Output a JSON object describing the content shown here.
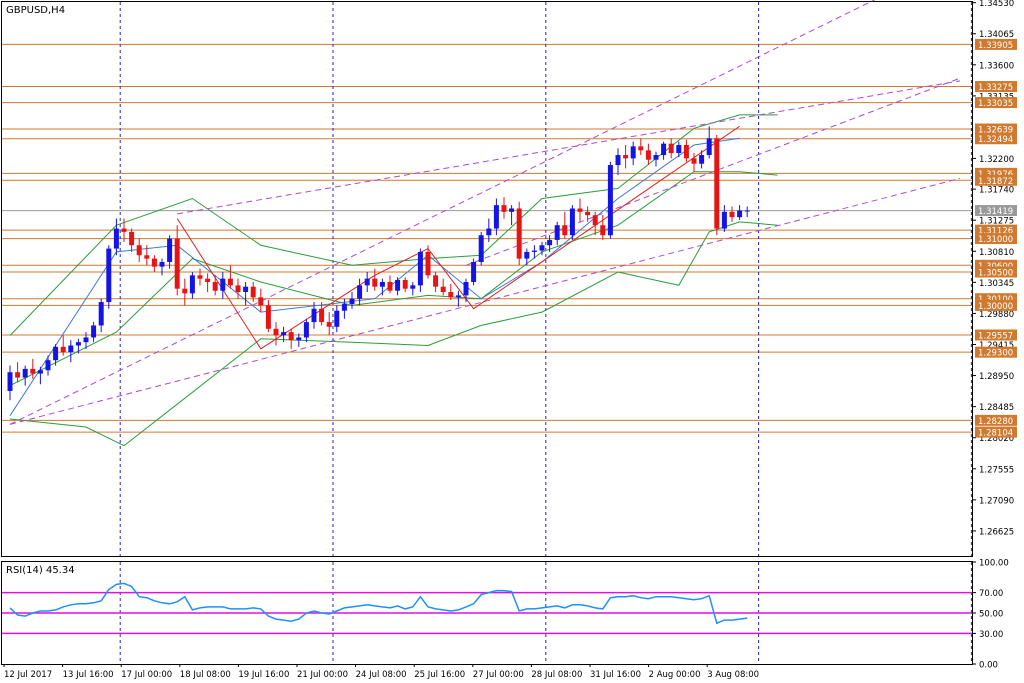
{
  "window": {
    "symbol_label": "GBPUSD,H4",
    "rsi_label": "RSI(14) 45.34"
  },
  "colors": {
    "bull": "#1414e6",
    "bear": "#e61414",
    "hline": "#d07a30",
    "vgrid": "#2222cc",
    "bands": "#2a9e3a",
    "ma": "#3a78d8",
    "channel": "#b04ad0",
    "zigzag": "#e02020",
    "rsi": "#1e90ff",
    "rsi_levels": "#e010e0",
    "price_box": "#d07a30",
    "axis_text": "#000000"
  },
  "chart_data": [
    {
      "type": "candlestick",
      "title": "GBPUSD,H4",
      "ylim": [
        1.2625,
        1.3454
      ],
      "price_axis_ticks": [
        "1.34530",
        "1.34065",
        "1.33600",
        "1.33135",
        "1.32200",
        "1.31740",
        "1.31275",
        "1.30810",
        "1.30345",
        "1.29880",
        "1.29415",
        "1.28950",
        "1.28485",
        "1.28020",
        "1.27555",
        "1.27090",
        "1.26625"
      ],
      "price_boxes": [
        {
          "label": "1.33905",
          "value": 1.33905,
          "kind": "level"
        },
        {
          "label": "1.33275",
          "value": 1.33275,
          "kind": "level"
        },
        {
          "label": "1.33035",
          "value": 1.33035,
          "kind": "level"
        },
        {
          "label": "1.32639",
          "value": 1.32639,
          "kind": "level"
        },
        {
          "label": "1.32494",
          "value": 1.32494,
          "kind": "level"
        },
        {
          "label": "1.31976",
          "value": 1.31976,
          "kind": "level"
        },
        {
          "label": "1.31872",
          "value": 1.31872,
          "kind": "level"
        },
        {
          "label": "1.31419",
          "value": 1.31419,
          "kind": "current"
        },
        {
          "label": "1.31126",
          "value": 1.31126,
          "kind": "level"
        },
        {
          "label": "1.31000",
          "value": 1.31,
          "kind": "level"
        },
        {
          "label": "1.30600",
          "value": 1.306,
          "kind": "level"
        },
        {
          "label": "1.30500",
          "value": 1.305,
          "kind": "level"
        },
        {
          "label": "1.30100",
          "value": 1.301,
          "kind": "level"
        },
        {
          "label": "1.30000",
          "value": 1.3,
          "kind": "level"
        },
        {
          "label": "1.29557",
          "value": 1.29557,
          "kind": "level"
        },
        {
          "label": "1.29300",
          "value": 1.293,
          "kind": "level"
        },
        {
          "label": "1.28280",
          "value": 1.2828,
          "kind": "level"
        },
        {
          "label": "1.28104",
          "value": 1.28104,
          "kind": "level"
        }
      ],
      "time_axis_labels": [
        "12 Jul 2017",
        "13 Jul 16:00",
        "17 Jul 00:00",
        "18 Jul 08:00",
        "19 Jul 16:00",
        "21 Jul 00:00",
        "24 Jul 08:00",
        "25 Jul 16:00",
        "27 Jul 00:00",
        "28 Jul 08:00",
        "31 Jul 16:00",
        "2 Aug 00:00",
        "3 Aug 08:00"
      ],
      "session_vlines_after_bar": [
        14,
        42,
        70,
        98,
        126
      ],
      "ohlc": [
        [
          1.2872,
          1.291,
          1.2858,
          1.29
        ],
        [
          1.29,
          1.2915,
          1.2885,
          1.2892
        ],
        [
          1.2892,
          1.291,
          1.288,
          1.2905
        ],
        [
          1.2905,
          1.292,
          1.289,
          1.2898
        ],
        [
          1.2898,
          1.2908,
          1.2882,
          1.2903
        ],
        [
          1.2903,
          1.2925,
          1.2895,
          1.2918
        ],
        [
          1.2918,
          1.2942,
          1.291,
          1.2938
        ],
        [
          1.2938,
          1.2955,
          1.2925,
          1.293
        ],
        [
          1.293,
          1.2948,
          1.2915,
          1.294
        ],
        [
          1.294,
          1.295,
          1.2928,
          1.2945
        ],
        [
          1.2945,
          1.296,
          1.2935,
          1.2952
        ],
        [
          1.2952,
          1.2975,
          1.2945,
          1.297
        ],
        [
          1.297,
          1.301,
          1.296,
          1.3005
        ],
        [
          1.3005,
          1.309,
          1.2995,
          1.3085
        ],
        [
          1.3085,
          1.313,
          1.3075,
          1.3115
        ],
        [
          1.3115,
          1.313,
          1.3095,
          1.311
        ],
        [
          1.311,
          1.3115,
          1.308,
          1.309
        ],
        [
          1.309,
          1.31,
          1.3065,
          1.3075
        ],
        [
          1.3075,
          1.309,
          1.306,
          1.307
        ],
        [
          1.307,
          1.3075,
          1.305,
          1.3058
        ],
        [
          1.3058,
          1.307,
          1.3045,
          1.3065
        ],
        [
          1.3065,
          1.3105,
          1.3055,
          1.31
        ],
        [
          1.31,
          1.312,
          1.3015,
          1.3025
        ],
        [
          1.3025,
          1.304,
          1.3,
          1.3018
        ],
        [
          1.3018,
          1.305,
          1.301,
          1.3045
        ],
        [
          1.3045,
          1.3055,
          1.303,
          1.304
        ],
        [
          1.304,
          1.3048,
          1.302,
          1.3035
        ],
        [
          1.3035,
          1.3045,
          1.3015,
          1.3022
        ],
        [
          1.3022,
          1.305,
          1.301,
          1.304
        ],
        [
          1.304,
          1.306,
          1.3025,
          1.303
        ],
        [
          1.303,
          1.304,
          1.301,
          1.302
        ],
        [
          1.302,
          1.3035,
          1.3,
          1.3028
        ],
        [
          1.3028,
          1.3035,
          1.3005,
          1.3012
        ],
        [
          1.3012,
          1.3025,
          1.299,
          1.3
        ],
        [
          1.3,
          1.3008,
          1.296,
          1.2965
        ],
        [
          1.2965,
          1.2975,
          1.294,
          1.2955
        ],
        [
          1.2955,
          1.2968,
          1.2945,
          1.296
        ],
        [
          1.296,
          1.2965,
          1.2935,
          1.2948
        ],
        [
          1.2948,
          1.2958,
          1.2938,
          1.2952
        ],
        [
          1.2952,
          1.298,
          1.2945,
          1.2975
        ],
        [
          1.2975,
          1.3005,
          1.2965,
          1.2995
        ],
        [
          1.2995,
          1.3005,
          1.297,
          1.2975
        ],
        [
          1.2975,
          1.299,
          1.2955,
          1.2968
        ],
        [
          1.2968,
          1.3,
          1.296,
          1.2992
        ],
        [
          1.2992,
          1.301,
          1.298,
          1.3002
        ],
        [
          1.3002,
          1.302,
          1.2995,
          1.301
        ],
        [
          1.301,
          1.304,
          1.3,
          1.303
        ],
        [
          1.303,
          1.305,
          1.302,
          1.304
        ],
        [
          1.304,
          1.3055,
          1.3022,
          1.3028
        ],
        [
          1.3028,
          1.304,
          1.3015,
          1.3035
        ],
        [
          1.3035,
          1.3045,
          1.3018,
          1.3022
        ],
        [
          1.3022,
          1.3042,
          1.3015,
          1.3038
        ],
        [
          1.3038,
          1.3042,
          1.302,
          1.3025
        ],
        [
          1.3025,
          1.3035,
          1.3015,
          1.303
        ],
        [
          1.303,
          1.3085,
          1.302,
          1.308
        ],
        [
          1.308,
          1.309,
          1.304,
          1.3045
        ],
        [
          1.3045,
          1.305,
          1.302,
          1.3028
        ],
        [
          1.3028,
          1.304,
          1.3015,
          1.302
        ],
        [
          1.302,
          1.3032,
          1.3008,
          1.3012
        ],
        [
          1.3012,
          1.3022,
          1.2998,
          1.3015
        ],
        [
          1.3015,
          1.304,
          1.3005,
          1.3035
        ],
        [
          1.3035,
          1.307,
          1.303,
          1.3065
        ],
        [
          1.3065,
          1.311,
          1.306,
          1.3105
        ],
        [
          1.3105,
          1.313,
          1.3095,
          1.3115
        ],
        [
          1.3115,
          1.316,
          1.3105,
          1.315
        ],
        [
          1.315,
          1.3162,
          1.313,
          1.314
        ],
        [
          1.314,
          1.315,
          1.312,
          1.3145
        ],
        [
          1.3145,
          1.3155,
          1.306,
          1.307
        ],
        [
          1.307,
          1.3085,
          1.306,
          1.308
        ],
        [
          1.308,
          1.309,
          1.307,
          1.3082
        ],
        [
          1.3082,
          1.3095,
          1.3075,
          1.309
        ],
        [
          1.309,
          1.3105,
          1.308,
          1.3098
        ],
        [
          1.3098,
          1.3125,
          1.309,
          1.312
        ],
        [
          1.312,
          1.314,
          1.31,
          1.3105
        ],
        [
          1.3105,
          1.315,
          1.3098,
          1.3145
        ],
        [
          1.3145,
          1.316,
          1.3125,
          1.314
        ],
        [
          1.314,
          1.3148,
          1.3125,
          1.3135
        ],
        [
          1.3135,
          1.314,
          1.3105,
          1.312
        ],
        [
          1.312,
          1.3135,
          1.3098,
          1.3105
        ],
        [
          1.3105,
          1.3215,
          1.31,
          1.321
        ],
        [
          1.321,
          1.3235,
          1.3195,
          1.3225
        ],
        [
          1.3225,
          1.324,
          1.3205,
          1.322
        ],
        [
          1.322,
          1.3245,
          1.321,
          1.3238
        ],
        [
          1.3238,
          1.325,
          1.3225,
          1.3232
        ],
        [
          1.3232,
          1.3242,
          1.321,
          1.3218
        ],
        [
          1.3218,
          1.323,
          1.3208,
          1.3225
        ],
        [
          1.3225,
          1.3245,
          1.3218,
          1.3242
        ],
        [
          1.3242,
          1.325,
          1.322,
          1.3228
        ],
        [
          1.3228,
          1.3245,
          1.3222,
          1.324
        ],
        [
          1.324,
          1.3248,
          1.3215,
          1.322
        ],
        [
          1.322,
          1.3228,
          1.32,
          1.3212
        ],
        [
          1.3212,
          1.3232,
          1.3205,
          1.3225
        ],
        [
          1.3225,
          1.3268,
          1.322,
          1.325
        ],
        [
          1.325,
          1.3255,
          1.3105,
          1.3115
        ],
        [
          1.3115,
          1.315,
          1.311,
          1.314
        ],
        [
          1.314,
          1.3148,
          1.3125,
          1.3132
        ],
        [
          1.3132,
          1.315,
          1.3128,
          1.3142
        ],
        [
          1.3142,
          1.3148,
          1.3132,
          1.3142
        ]
      ],
      "channel_lines": [
        [
          [
            0,
            1.2822
          ],
          [
            125,
            1.352
          ]
        ],
        [
          [
            0,
            1.2822
          ],
          [
            125,
            1.319
          ]
        ],
        [
          [
            22,
            1.3137
          ],
          [
            125,
            1.3336
          ]
        ],
        [
          [
            60,
            1.306
          ],
          [
            125,
            1.334
          ]
        ]
      ],
      "zigzag": [
        [
          22,
          1.313
        ],
        [
          33,
          1.2935
        ],
        [
          48,
          1.3045
        ],
        [
          55,
          1.3085
        ],
        [
          61,
          1.2995
        ],
        [
          96,
          1.3268
        ]
      ],
      "bands": {
        "upper": [
          [
            0,
            1.2955
          ],
          [
            14,
            1.312
          ],
          [
            24,
            1.316
          ],
          [
            33,
            1.309
          ],
          [
            45,
            1.306
          ],
          [
            55,
            1.307
          ],
          [
            62,
            1.3075
          ],
          [
            70,
            1.316
          ],
          [
            80,
            1.3175
          ],
          [
            90,
            1.3265
          ],
          [
            96,
            1.3285
          ],
          [
            101,
            1.3285
          ]
        ],
        "middle": [
          [
            0,
            1.288
          ],
          [
            14,
            1.296
          ],
          [
            24,
            1.307
          ],
          [
            33,
            1.3035
          ],
          [
            45,
            1.3
          ],
          [
            55,
            1.3015
          ],
          [
            62,
            1.301
          ],
          [
            70,
            1.308
          ],
          [
            80,
            1.312
          ],
          [
            90,
            1.32
          ],
          [
            96,
            1.32
          ],
          [
            101,
            1.3195
          ]
        ],
        "lower": [
          [
            0,
            1.283
          ],
          [
            10,
            1.2818
          ],
          [
            15,
            1.279
          ],
          [
            24,
            1.287
          ],
          [
            33,
            1.295
          ],
          [
            45,
            1.2945
          ],
          [
            55,
            1.294
          ],
          [
            62,
            1.297
          ],
          [
            70,
            1.299
          ],
          [
            80,
            1.305
          ],
          [
            88,
            1.303
          ],
          [
            92,
            1.311
          ],
          [
            96,
            1.3125
          ],
          [
            101,
            1.312
          ]
        ]
      },
      "ma": [
        [
          0,
          1.2835
        ],
        [
          14,
          1.308
        ],
        [
          22,
          1.309
        ],
        [
          33,
          1.299
        ],
        [
          48,
          1.301
        ],
        [
          55,
          1.3075
        ],
        [
          62,
          1.301
        ],
        [
          70,
          1.3065
        ],
        [
          80,
          1.316
        ],
        [
          90,
          1.324
        ],
        [
          96,
          1.325
        ]
      ]
    },
    {
      "type": "line",
      "title": "RSI(14) 45.34",
      "ylim": [
        0,
        100
      ],
      "levels": [
        30,
        50,
        70
      ],
      "y_ticks": [
        "100.00",
        "70.00",
        "50.00",
        "30.00",
        "0.00"
      ],
      "values": [
        55,
        48,
        47,
        50,
        52,
        52,
        53,
        56,
        58,
        59,
        59,
        60,
        62,
        73,
        78,
        79,
        76,
        66,
        65,
        62,
        60,
        59,
        61,
        66,
        53,
        55,
        56,
        56,
        56,
        54,
        54,
        54,
        55,
        54,
        47,
        44,
        43,
        42,
        44,
        50,
        52,
        50,
        49,
        52,
        55,
        56,
        57,
        58,
        57,
        56,
        55,
        57,
        54,
        56,
        66,
        56,
        54,
        53,
        52,
        53,
        56,
        59,
        68,
        70,
        72,
        72,
        71,
        52,
        54,
        54,
        55,
        56,
        57,
        55,
        58,
        58,
        57,
        55,
        54,
        65,
        66,
        66,
        67,
        65,
        64,
        66,
        66,
        66,
        65,
        64,
        63,
        64,
        67,
        40,
        43,
        43,
        44,
        45
      ]
    }
  ]
}
